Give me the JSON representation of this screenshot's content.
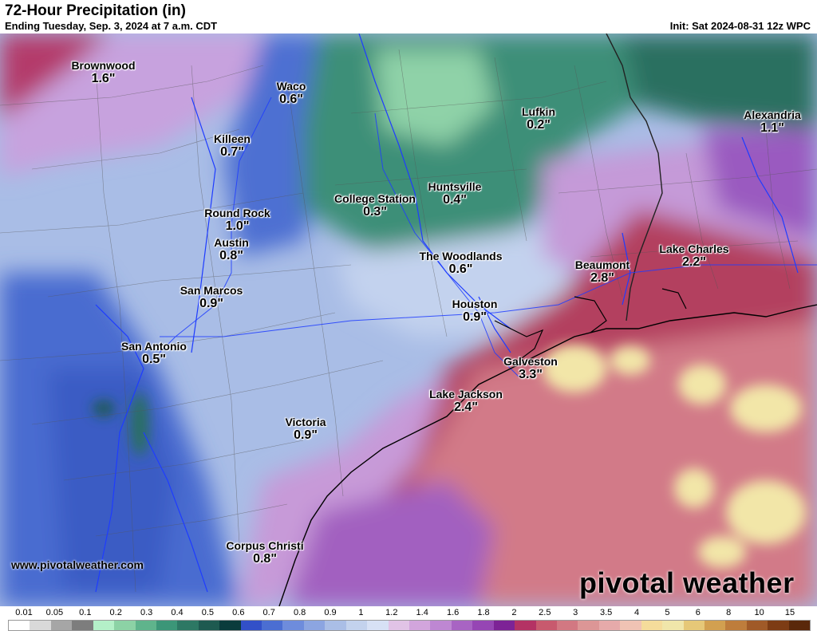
{
  "header": {
    "title": "72-Hour Precipitation (in)",
    "subtitle": "Ending Tuesday, Sep. 3, 2024 at 7 a.m. CDT",
    "init": "Init: Sat 2024-08-31 12z WPC"
  },
  "cities": [
    {
      "name": "Brownwood",
      "value": "1.6\""
    },
    {
      "name": "Waco",
      "value": "0.6\""
    },
    {
      "name": "Lufkin",
      "value": "0.2\""
    },
    {
      "name": "Alexandria",
      "value": "1.1\""
    },
    {
      "name": "Killeen",
      "value": "0.7\""
    },
    {
      "name": "College Station",
      "value": "0.3\""
    },
    {
      "name": "Huntsville",
      "value": "0.4\""
    },
    {
      "name": "Round Rock",
      "value": "1.0\""
    },
    {
      "name": "Austin",
      "value": "0.8\""
    },
    {
      "name": "The Woodlands",
      "value": "0.6\""
    },
    {
      "name": "Beaumont",
      "value": "2.8\""
    },
    {
      "name": "Lake Charles",
      "value": "2.2\""
    },
    {
      "name": "San Marcos",
      "value": "0.9\""
    },
    {
      "name": "Houston",
      "value": "0.9\""
    },
    {
      "name": "San Antonio",
      "value": "0.5\""
    },
    {
      "name": "Galveston",
      "value": "3.3\""
    },
    {
      "name": "Lake Jackson",
      "value": "2.4\""
    },
    {
      "name": "Victoria",
      "value": "0.9\""
    },
    {
      "name": "Corpus Christi",
      "value": "0.8\""
    }
  ],
  "footer": {
    "website": "www.pivotalweather.com",
    "brand": "pivotal weather"
  },
  "legend": {
    "labels": [
      "0.01",
      "0.05",
      "0.1",
      "0.2",
      "0.3",
      "0.4",
      "0.5",
      "0.6",
      "0.7",
      "0.8",
      "0.9",
      "1",
      "1.2",
      "1.4",
      "1.6",
      "1.8",
      "2",
      "2.5",
      "3",
      "3.5",
      "4",
      "5",
      "6",
      "8",
      "10",
      "15"
    ],
    "colors": [
      "#ffffff",
      "#d9d9d9",
      "#a6a6a6",
      "#7d7d7d",
      "#b4f0c8",
      "#8cd2a5",
      "#5fb48c",
      "#3c9678",
      "#2d7864",
      "#1e5a50",
      "#0a3c3c",
      "#3250c8",
      "#4b6ed2",
      "#6e8cdc",
      "#8ca5e1",
      "#aabee6",
      "#c3d2ed",
      "#d7e1f5",
      "#e1c3e6",
      "#d2a5dc",
      "#be87d2",
      "#a864c3",
      "#9646b4",
      "#7d2396",
      "#b43264",
      "#c85a6e",
      "#d27882",
      "#dc9696",
      "#e6aaaa",
      "#f0c3b4",
      "#f5dc9b",
      "#f0e6aa",
      "#e6c878",
      "#d2a050",
      "#be7d3c",
      "#a05a28",
      "#7d3c14",
      "#5a280a"
    ]
  }
}
